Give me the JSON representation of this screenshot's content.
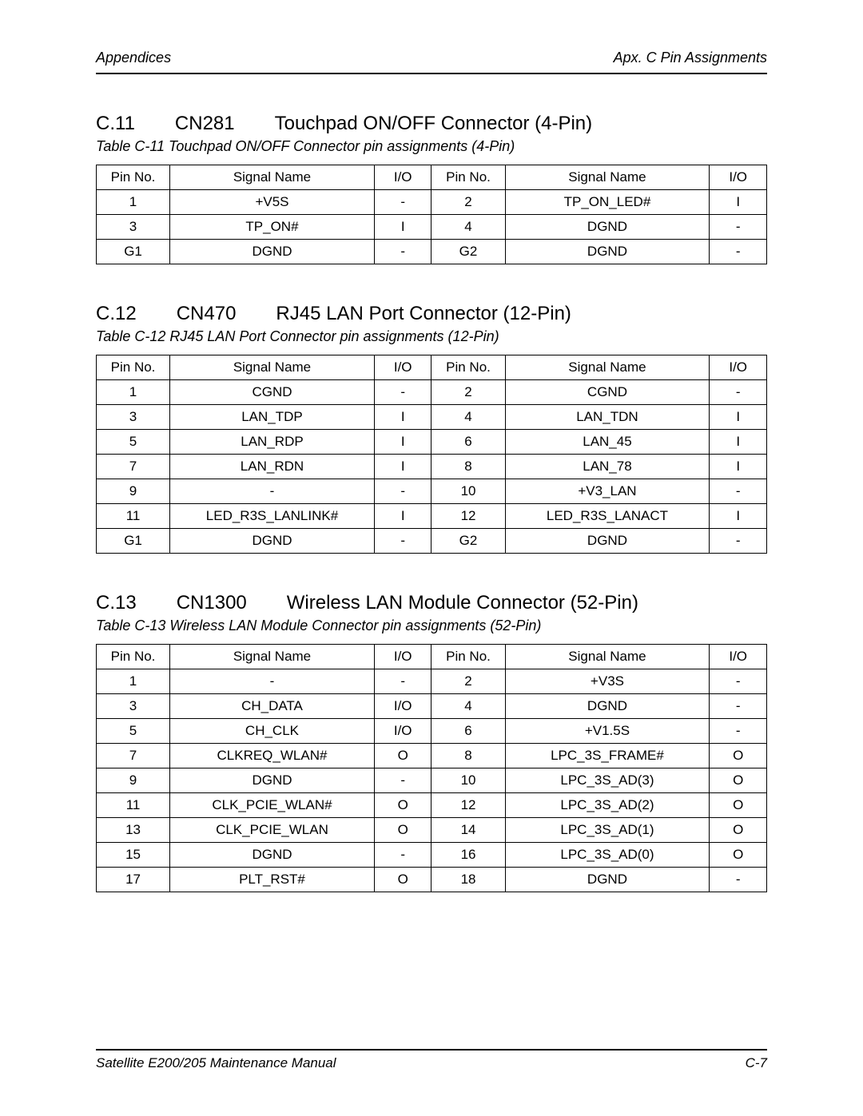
{
  "header": {
    "left": "Appendices",
    "right": "Apx. C  Pin Assignments"
  },
  "footer": {
    "left": "Satellite E200/205    Maintenance Manual",
    "right": "C-7"
  },
  "table_headers": {
    "pin": "Pin No.",
    "signal": "Signal Name",
    "io": "I/O"
  },
  "sections": [
    {
      "num": "C.11",
      "code": "CN281",
      "title": "Touchpad ON/OFF Connector (4-Pin)",
      "caption": "Table C-11   Touchpad ON/OFF Connector pin assignments (4-Pin)",
      "rows": [
        {
          "p1": "1",
          "s1": "+V5S",
          "i1": "-",
          "p2": "2",
          "s2": "TP_ON_LED#",
          "i2": "I"
        },
        {
          "p1": "3",
          "s1": "TP_ON#",
          "i1": "I",
          "p2": "4",
          "s2": "DGND",
          "i2": "-"
        },
        {
          "p1": "G1",
          "s1": "DGND",
          "i1": "-",
          "p2": "G2",
          "s2": "DGND",
          "i2": "-"
        }
      ]
    },
    {
      "num": "C.12",
      "code": "CN470",
      "title": "RJ45 LAN Port Connector (12-Pin)",
      "caption": "Table C-12   RJ45 LAN Port Connector pin assignments (12-Pin)",
      "rows": [
        {
          "p1": "1",
          "s1": "CGND",
          "i1": "-",
          "p2": "2",
          "s2": "CGND",
          "i2": "-"
        },
        {
          "p1": "3",
          "s1": "LAN_TDP",
          "i1": "I",
          "p2": "4",
          "s2": "LAN_TDN",
          "i2": "I"
        },
        {
          "p1": "5",
          "s1": "LAN_RDP",
          "i1": "I",
          "p2": "6",
          "s2": "LAN_45",
          "i2": "I"
        },
        {
          "p1": "7",
          "s1": "LAN_RDN",
          "i1": "I",
          "p2": "8",
          "s2": "LAN_78",
          "i2": "I"
        },
        {
          "p1": "9",
          "s1": "-",
          "i1": "-",
          "p2": "10",
          "s2": "+V3_LAN",
          "i2": "-"
        },
        {
          "p1": "11",
          "s1": "LED_R3S_LANLINK#",
          "i1": "I",
          "p2": "12",
          "s2": "LED_R3S_LANACT",
          "i2": "I"
        },
        {
          "p1": "G1",
          "s1": "DGND",
          "i1": "-",
          "p2": "G2",
          "s2": "DGND",
          "i2": "-"
        }
      ]
    },
    {
      "num": "C.13",
      "code": "CN1300",
      "title": "Wireless LAN Module Connector (52-Pin)",
      "caption": "Table C-13   Wireless LAN Module Connector pin assignments (52-Pin)",
      "rows": [
        {
          "p1": "1",
          "s1": "-",
          "i1": "-",
          "p2": "2",
          "s2": "+V3S",
          "i2": "-"
        },
        {
          "p1": "3",
          "s1": "CH_DATA",
          "i1": "I/O",
          "p2": "4",
          "s2": "DGND",
          "i2": "-"
        },
        {
          "p1": "5",
          "s1": "CH_CLK",
          "i1": "I/O",
          "p2": "6",
          "s2": "+V1.5S",
          "i2": "-"
        },
        {
          "p1": "7",
          "s1": "CLKREQ_WLAN#",
          "i1": "O",
          "p2": "8",
          "s2": "LPC_3S_FRAME#",
          "i2": "O"
        },
        {
          "p1": "9",
          "s1": "DGND",
          "i1": "-",
          "p2": "10",
          "s2": "LPC_3S_AD(3)",
          "i2": "O"
        },
        {
          "p1": "11",
          "s1": "CLK_PCIE_WLAN#",
          "i1": "O",
          "p2": "12",
          "s2": "LPC_3S_AD(2)",
          "i2": "O"
        },
        {
          "p1": "13",
          "s1": "CLK_PCIE_WLAN",
          "i1": "O",
          "p2": "14",
          "s2": "LPC_3S_AD(1)",
          "i2": "O"
        },
        {
          "p1": "15",
          "s1": "DGND",
          "i1": "-",
          "p2": "16",
          "s2": "LPC_3S_AD(0)",
          "i2": "O"
        },
        {
          "p1": "17",
          "s1": "PLT_RST#",
          "i1": "O",
          "p2": "18",
          "s2": "DGND",
          "i2": "-"
        }
      ]
    }
  ]
}
